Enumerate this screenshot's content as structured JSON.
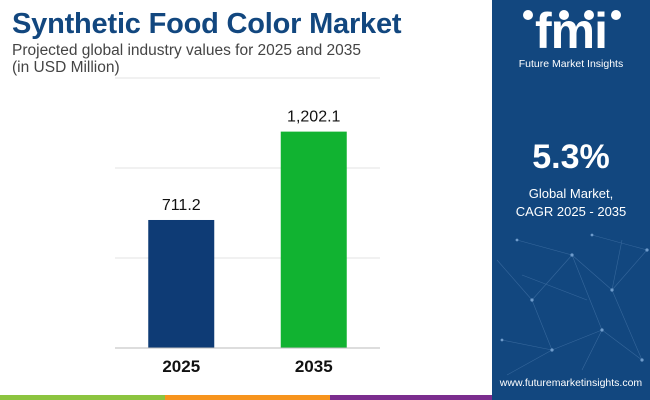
{
  "header": {
    "title": "Synthetic Food Color Market",
    "subtitle_line1": "Projected global industry values for 2025 and 2035",
    "subtitle_line2": "(in USD Million)"
  },
  "chart_data": {
    "type": "bar",
    "categories": [
      "2025",
      "2035"
    ],
    "values": [
      711.2,
      1202.1
    ],
    "value_labels": [
      "711.2",
      "1,202.1"
    ],
    "bar_colors": [
      "#0e3b75",
      "#11b331"
    ],
    "ylim": [
      0,
      1500
    ],
    "grid": true
  },
  "sidebar": {
    "logo_text": "fmi",
    "logo_subtitle": "Future Market Insights",
    "cagr_value": "5.3%",
    "cagr_label_line1": "Global Market,",
    "cagr_label_line2": "CAGR 2025 - 2035",
    "website": "www.futuremarketinsights.com",
    "background": "#12477f"
  },
  "footer_stripe_colors": [
    "#12477f",
    "#8cc43f",
    "#f7941d",
    "#7b2d8e"
  ]
}
